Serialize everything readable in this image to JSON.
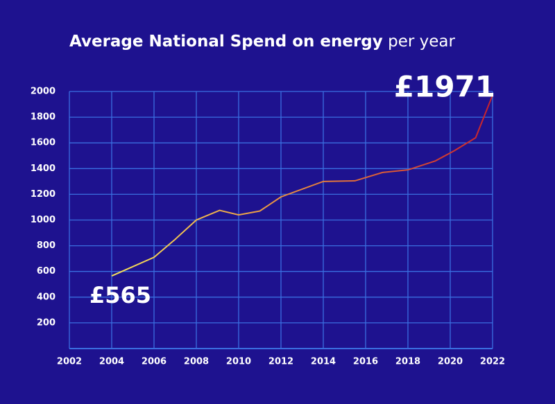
{
  "chart_data": {
    "type": "line",
    "title": "Average National Spend on energy",
    "title_suffix": "per year",
    "x": [
      2004,
      2006,
      2007,
      2008,
      2009.1,
      2010,
      2011,
      2012,
      2014,
      2015.5,
      2016.8,
      2018,
      2019.3,
      2020.2,
      2021.2,
      2022
    ],
    "values": [
      565,
      710,
      850,
      1000,
      1075,
      1040,
      1070,
      1180,
      1300,
      1305,
      1370,
      1390,
      1460,
      1540,
      1640,
      1971
    ],
    "value_labels": [
      "£565",
      null,
      null,
      null,
      null,
      null,
      null,
      null,
      null,
      null,
      null,
      null,
      null,
      null,
      null,
      "£1971"
    ],
    "colors": [
      "#f6e35a",
      "#e8883e",
      "#c8202c"
    ],
    "xlim": [
      2002,
      2022
    ],
    "xticks": [
      2002,
      2004,
      2006,
      2008,
      2010,
      2012,
      2014,
      2016,
      2018,
      2020,
      2022
    ],
    "ylim": [
      0,
      2000
    ],
    "yticks": [
      200,
      400,
      600,
      800,
      1000,
      1200,
      1400,
      1600,
      1800,
      2000
    ],
    "grid": true
  }
}
